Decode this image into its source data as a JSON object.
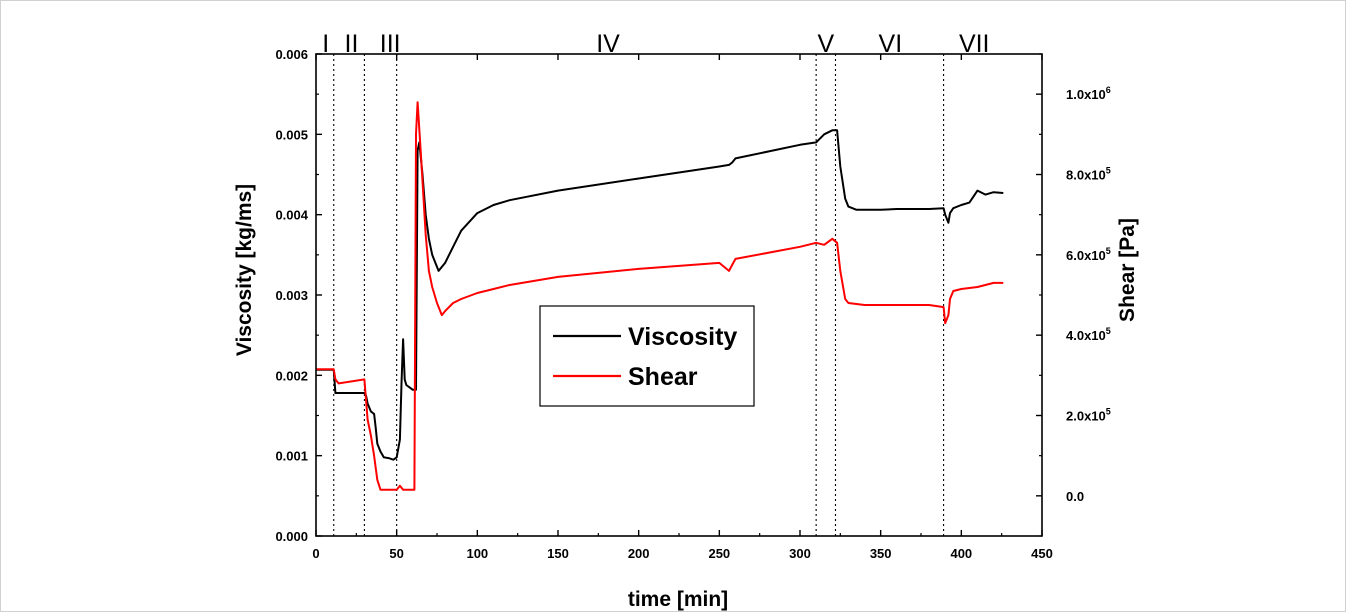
{
  "chart_data": {
    "type": "line",
    "xlabel": "time [min]",
    "ylabel": "Viscosity [kg/ms]",
    "y2label": "Shear [Pa]",
    "xlim": [
      0,
      450
    ],
    "ylim": [
      0,
      0.006
    ],
    "y2lim": [
      -100000,
      1100000
    ],
    "x_ticks": [
      0,
      50,
      100,
      150,
      200,
      250,
      300,
      350,
      400,
      450
    ],
    "x_tick_labels": [
      "0",
      "50",
      "100",
      "150",
      "200",
      "250",
      "300",
      "350",
      "400",
      "450"
    ],
    "y_ticks": [
      0,
      0.001,
      0.002,
      0.003,
      0.004,
      0.005,
      0.006
    ],
    "y_tick_labels": [
      "0.000",
      "0.001",
      "0.002",
      "0.003",
      "0.004",
      "0.005",
      "0.006"
    ],
    "y2_ticks": [
      0,
      200000,
      400000,
      600000,
      800000,
      1000000
    ],
    "y2_tick_labels": [
      {
        "mantissa": "0.0",
        "exp": ""
      },
      {
        "mantissa": "2.0x10",
        "exp": "5"
      },
      {
        "mantissa": "4.0x10",
        "exp": "5"
      },
      {
        "mantissa": "6.0x10",
        "exp": "5"
      },
      {
        "mantissa": "8.0x10",
        "exp": "5"
      },
      {
        "mantissa": "1.0x10",
        "exp": "6"
      }
    ],
    "phase_boundaries": [
      11,
      30,
      50,
      310,
      322,
      389
    ],
    "phases": [
      {
        "label": "I",
        "x": 6
      },
      {
        "label": "II",
        "x": 22
      },
      {
        "label": "III",
        "x": 46
      },
      {
        "label": "IV",
        "x": 181
      },
      {
        "label": "V",
        "x": 316
      },
      {
        "label": "VI",
        "x": 356
      },
      {
        "label": "VII",
        "x": 408
      }
    ],
    "legend_position": "center",
    "series": [
      {
        "name": "Viscosity",
        "axis": "left",
        "color": "#000000",
        "x": [
          0,
          11,
          12,
          30,
          31,
          32,
          34,
          36,
          37,
          38,
          40,
          42,
          45,
          48,
          50,
          52,
          53,
          54,
          55,
          56,
          58,
          60,
          62,
          63,
          64,
          66,
          68,
          70,
          72,
          74,
          76,
          80,
          85,
          90,
          100,
          110,
          120,
          150,
          200,
          250,
          256,
          258,
          260,
          300,
          310,
          315,
          320,
          323,
          325,
          328,
          330,
          335,
          340,
          350,
          360,
          380,
          389,
          390,
          392,
          393,
          395,
          400,
          405,
          410,
          415,
          420,
          426
        ],
        "y": [
          0.00207,
          0.00207,
          0.00178,
          0.00178,
          0.00175,
          0.00165,
          0.00155,
          0.00152,
          0.00135,
          0.00115,
          0.00105,
          0.00098,
          0.00097,
          0.00095,
          0.00098,
          0.0012,
          0.0019,
          0.00245,
          0.00195,
          0.00188,
          0.00185,
          0.00182,
          0.00182,
          0.0048,
          0.0049,
          0.0045,
          0.004,
          0.0037,
          0.0035,
          0.0034,
          0.0033,
          0.0034,
          0.0036,
          0.0038,
          0.00402,
          0.00412,
          0.00418,
          0.0043,
          0.00445,
          0.0046,
          0.00462,
          0.00465,
          0.0047,
          0.00487,
          0.0049,
          0.005,
          0.00505,
          0.00505,
          0.0046,
          0.0042,
          0.0041,
          0.00406,
          0.00406,
          0.00406,
          0.00407,
          0.00407,
          0.00408,
          0.004,
          0.0039,
          0.00402,
          0.00408,
          0.00412,
          0.00415,
          0.0043,
          0.00425,
          0.00428,
          0.00427
        ]
      },
      {
        "name": "Shear",
        "axis": "right",
        "color": "#ff0000",
        "x": [
          0,
          11,
          12,
          14,
          30,
          31,
          32,
          34,
          36,
          38,
          40,
          50,
          52,
          54,
          56,
          58,
          61,
          62,
          63,
          65,
          68,
          70,
          72,
          75,
          78,
          80,
          85,
          90,
          100,
          110,
          120,
          150,
          200,
          250,
          256,
          258,
          260,
          300,
          310,
          315,
          320,
          323,
          325,
          328,
          330,
          340,
          360,
          380,
          389,
          390,
          392,
          393,
          395,
          400,
          410,
          420,
          426
        ],
        "y": [
          315000,
          315000,
          290000,
          280000,
          290000,
          240000,
          190000,
          150000,
          100000,
          40000,
          15000,
          15000,
          25000,
          15000,
          15000,
          15000,
          15000,
          900000,
          980000,
          850000,
          650000,
          560000,
          520000,
          480000,
          450000,
          460000,
          480000,
          490000,
          505000,
          515000,
          525000,
          545000,
          565000,
          580000,
          560000,
          575000,
          590000,
          620000,
          630000,
          625000,
          640000,
          630000,
          560000,
          490000,
          480000,
          475000,
          475000,
          475000,
          470000,
          430000,
          450000,
          490000,
          510000,
          515000,
          520000,
          530000,
          530000
        ]
      }
    ]
  }
}
